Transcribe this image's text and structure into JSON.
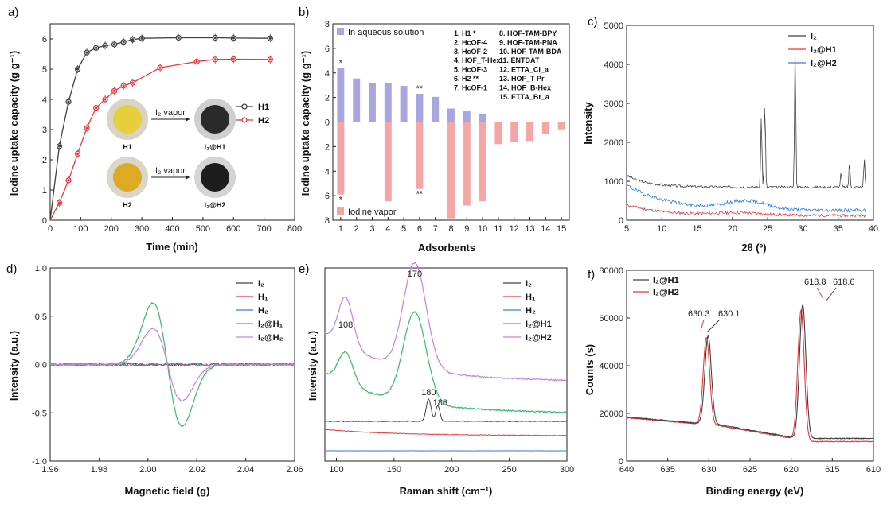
{
  "panels": {
    "a": {
      "label": "a)"
    },
    "b": {
      "label": "b)"
    },
    "c": {
      "label": "c)"
    },
    "d": {
      "label": "d)"
    },
    "e": {
      "label": "e)"
    },
    "f": {
      "label": "f)"
    }
  },
  "colors": {
    "black": "#404040",
    "red": "#e8383b",
    "blue": "#2d7fe0",
    "green": "#3cba64",
    "violet": "#c77fe8",
    "bar_blue": "#a8a6e0",
    "bar_red": "#f4a6a6"
  },
  "chart_data": [
    {
      "id": "a",
      "type": "line",
      "xlabel": "Time (min)",
      "ylabel": "Iodine uptake capacity (g g⁻¹)",
      "xlim": [
        0,
        800
      ],
      "ylim": [
        0,
        6.5
      ],
      "xticks": [
        "0",
        "100",
        "200",
        "300",
        "400",
        "500",
        "600",
        "700",
        "800"
      ],
      "yticks": [
        "0",
        "1",
        "2",
        "3",
        "4",
        "5",
        "6"
      ],
      "legend_position": "right",
      "series": [
        {
          "name": "H1",
          "color": "#404040",
          "x": [
            0,
            30,
            60,
            90,
            120,
            150,
            180,
            210,
            240,
            270,
            300,
            420,
            540,
            600,
            720
          ],
          "y": [
            0,
            2.45,
            3.92,
            5.0,
            5.55,
            5.7,
            5.78,
            5.82,
            5.9,
            5.98,
            6.02,
            6.04,
            6.04,
            6.03,
            6.02
          ]
        },
        {
          "name": "H2",
          "color": "#e8383b",
          "x": [
            0,
            30,
            60,
            90,
            120,
            150,
            180,
            210,
            240,
            270,
            360,
            480,
            540,
            600,
            720
          ],
          "y": [
            0,
            0.58,
            1.32,
            2.2,
            3.05,
            3.72,
            4.0,
            4.28,
            4.45,
            4.55,
            5.05,
            5.25,
            5.32,
            5.33,
            5.32
          ]
        }
      ],
      "inset": {
        "arrow_label": "I₂ vapor",
        "items": [
          "H1",
          "I₂@H1",
          "H2",
          "I₂@H2"
        ]
      }
    },
    {
      "id": "b",
      "type": "bar",
      "xlabel": "Adsorbents",
      "ylabel": "Iodine uptake capacity (g g⁻¹)",
      "categories": [
        "1",
        "2",
        "3",
        "4",
        "5",
        "6",
        "7",
        "8",
        "9",
        "10",
        "11",
        "12",
        "13",
        "14",
        "15"
      ],
      "yticks_top": [
        "0",
        "2",
        "4",
        "6",
        "8"
      ],
      "yticks_bottom": [
        "2",
        "4",
        "6",
        "8"
      ],
      "ylim": [
        -8,
        8
      ],
      "series": [
        {
          "name": "In aqueous solution",
          "color": "#a8a6e0",
          "values": [
            4.4,
            3.55,
            3.2,
            3.15,
            2.95,
            2.3,
            2.05,
            1.1,
            0.88,
            0.65,
            0,
            0,
            0,
            0,
            0
          ]
        },
        {
          "name": "Iodine vapor",
          "color": "#f4a6a6",
          "values": [
            -5.9,
            0,
            0,
            -6.45,
            0,
            -5.45,
            0,
            -7.85,
            -6.8,
            -6.45,
            -1.8,
            -1.65,
            -1.55,
            -0.95,
            -0.6
          ]
        }
      ],
      "star_labels": [
        {
          "category": "1",
          "text": "*",
          "side": "top"
        },
        {
          "category": "6",
          "text": "**",
          "side": "top"
        },
        {
          "category": "1",
          "text": "*",
          "side": "bottom"
        },
        {
          "category": "6",
          "text": "**",
          "side": "bottom"
        }
      ],
      "legend_list_col1": [
        "1. H1 *",
        "2. HcOF-4",
        "3. HcOF-2",
        "4. HOF_T-Hex",
        "5. HcOF-3",
        "6. H2 **",
        "7. HcOF-1"
      ],
      "legend_list_col2": [
        "8. HOF-TAM-BPY",
        "9. HOF-TAM-PNA",
        "10. HOF-TAM-BDA",
        "11. ENTDAT",
        "12. ETTA_Cl_a",
        "13. HOF_T-Pr",
        "14. HOF_B-Hex",
        "15. ETTA_Br_a"
      ]
    },
    {
      "id": "c",
      "type": "line",
      "xlabel": "2θ (º)",
      "ylabel": "Intensity",
      "xlim": [
        5,
        40
      ],
      "ylim": [
        0,
        5000
      ],
      "xticks": [
        "5",
        "10",
        "15",
        "20",
        "25",
        "30",
        "35",
        "40"
      ],
      "yticks": [
        "0",
        "1000",
        "2000",
        "3000",
        "4000",
        "5000"
      ],
      "legend_position": "top-right",
      "series": [
        {
          "name": "I₂",
          "color": "#404040"
        },
        {
          "name": "I₂@H1",
          "color": "#e8383b"
        },
        {
          "name": "I₂@H2",
          "color": "#2d7fe0"
        }
      ]
    },
    {
      "id": "d",
      "type": "line",
      "xlabel": "Magnetic field (g)",
      "ylabel": "Intensity (a.u.)",
      "xlim": [
        1.96,
        2.06
      ],
      "ylim": [
        -1.0,
        1.0
      ],
      "xticks": [
        "1.96",
        "1.98",
        "2.00",
        "2.02",
        "2.04",
        "2.06"
      ],
      "yticks": [
        "-1.0",
        "-0.5",
        "0.0",
        "0.5",
        "1.0"
      ],
      "legend_position": "top-right",
      "series": [
        {
          "name": "I₂",
          "color": "#404040"
        },
        {
          "name": "H₁",
          "color": "#e8383b"
        },
        {
          "name": "H₂",
          "color": "#2d7fe0"
        },
        {
          "name": "I₂@H₁",
          "color": "#3cba64"
        },
        {
          "name": "I₂@H₂",
          "color": "#c77fe8"
        }
      ]
    },
    {
      "id": "e",
      "type": "line",
      "xlabel": "Raman shift (cm⁻¹)",
      "ylabel": "Intensity (a.u.)",
      "xlim": [
        90,
        300
      ],
      "xticks": [
        "100",
        "150",
        "200",
        "250",
        "300"
      ],
      "legend_position": "top-right",
      "annotations": [
        "170",
        "108",
        "180",
        "188"
      ],
      "series": [
        {
          "name": "I₂",
          "color": "#404040"
        },
        {
          "name": "H₁",
          "color": "#e8383b"
        },
        {
          "name": "H₂",
          "color": "#2d7fe0"
        },
        {
          "name": "I₂@H1",
          "color": "#3cba64"
        },
        {
          "name": "I₂@H2",
          "color": "#c77fe8"
        }
      ]
    },
    {
      "id": "f",
      "type": "line",
      "xlabel": "Binding energy (eV)",
      "ylabel": "Counts (s)",
      "xlim": [
        640,
        610
      ],
      "ylim": [
        0,
        80000
      ],
      "xticks": [
        "640",
        "635",
        "630",
        "625",
        "620",
        "615",
        "610"
      ],
      "yticks": [
        "0",
        "20000",
        "40000",
        "60000",
        "80000"
      ],
      "legend_position": "top-left",
      "annotations": [
        {
          "text": "630.3",
          "color": "#e8383b"
        },
        {
          "text": "630.1",
          "color": "#404040"
        },
        {
          "text": "618.8",
          "color": "#e8383b"
        },
        {
          "text": "618.6",
          "color": "#404040"
        }
      ],
      "series": [
        {
          "name": "I₂@H1",
          "color": "#404040"
        },
        {
          "name": "I₂@H2",
          "color": "#e8383b"
        }
      ]
    }
  ]
}
